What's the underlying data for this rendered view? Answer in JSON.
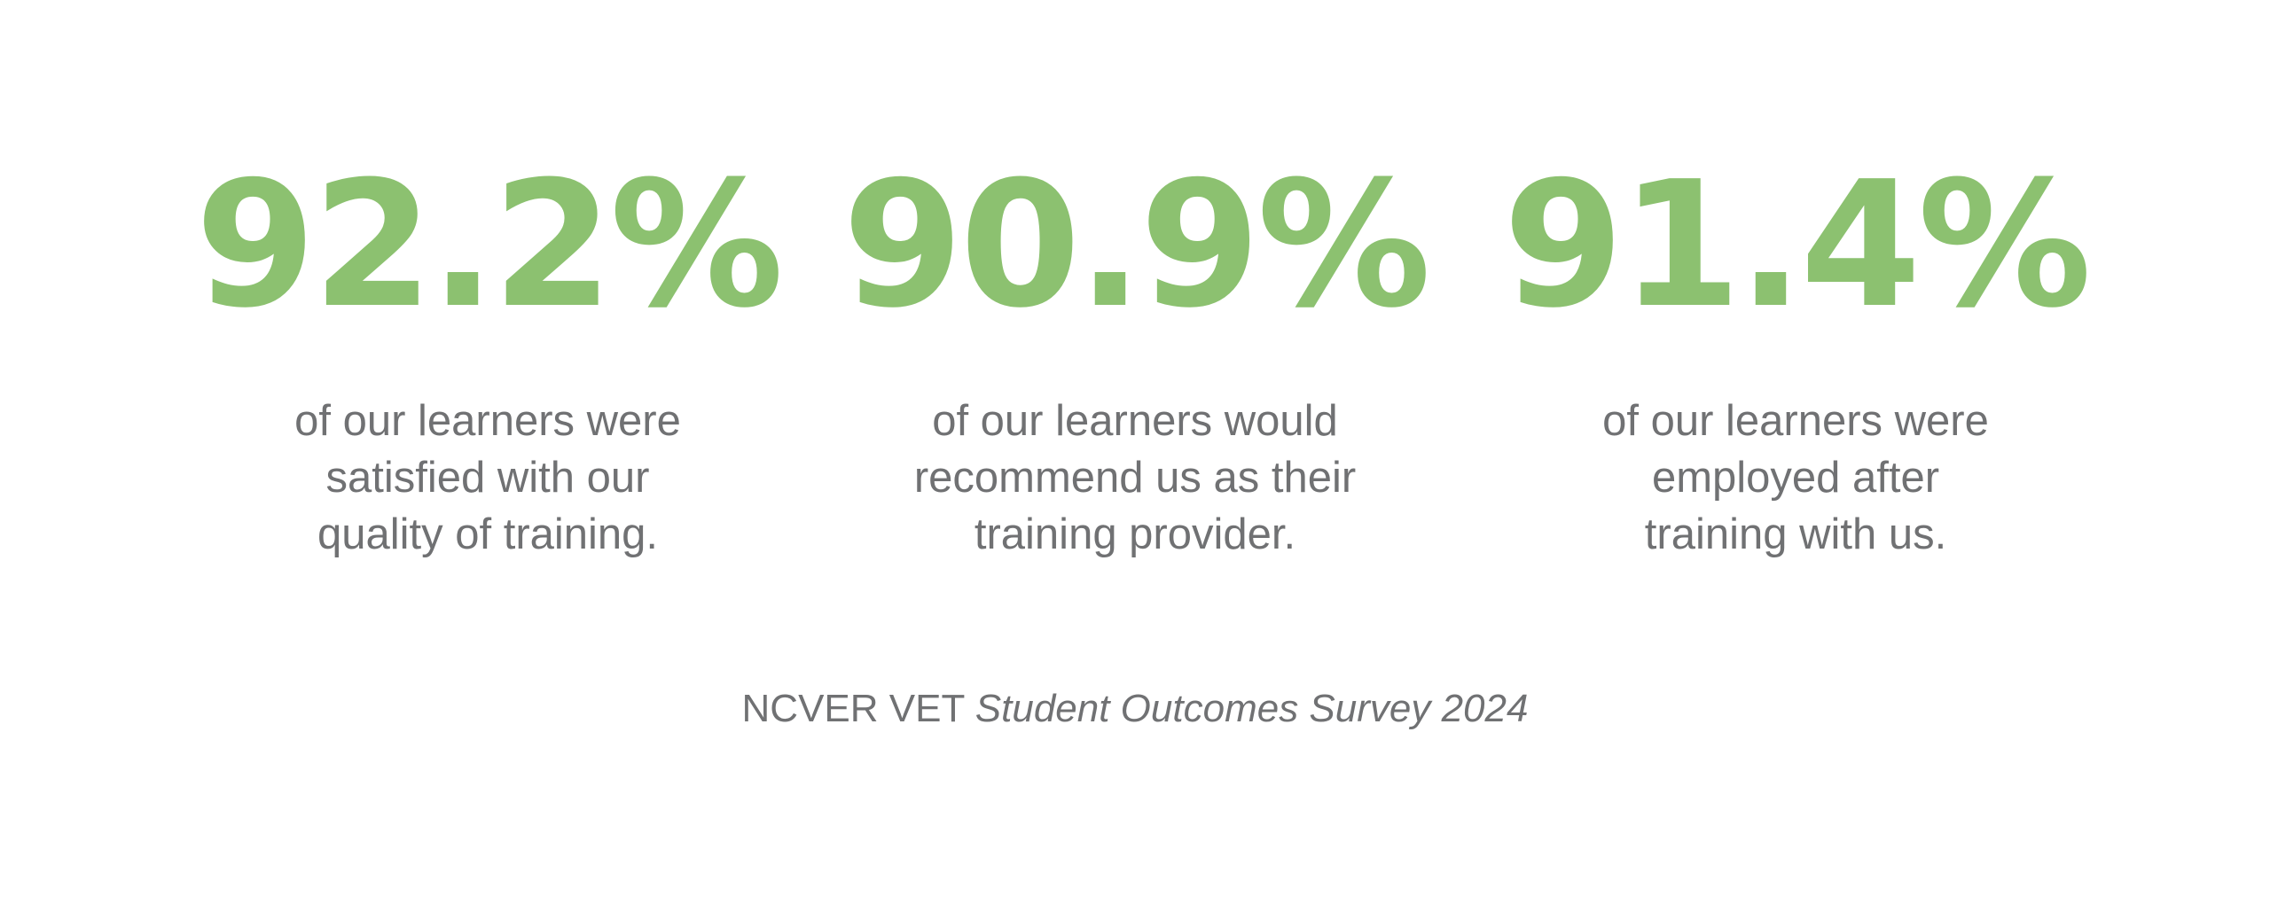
{
  "colors": {
    "accent": "#8cc170",
    "text": "#707173",
    "background": "#ffffff"
  },
  "stats": [
    {
      "value": "92.2%",
      "caption_lines": [
        "of our learners were",
        "satisfied with our",
        "quality of training."
      ]
    },
    {
      "value": "90.9%",
      "caption_lines": [
        "of our learners would",
        "recommend us as their",
        "training provider."
      ]
    },
    {
      "value": "91.4%",
      "caption_lines": [
        "of our learners were",
        "employed after",
        "training with us."
      ]
    }
  ],
  "source": {
    "prefix": "NCVER VET",
    "italic": "Student Outcomes Survey 2024"
  }
}
